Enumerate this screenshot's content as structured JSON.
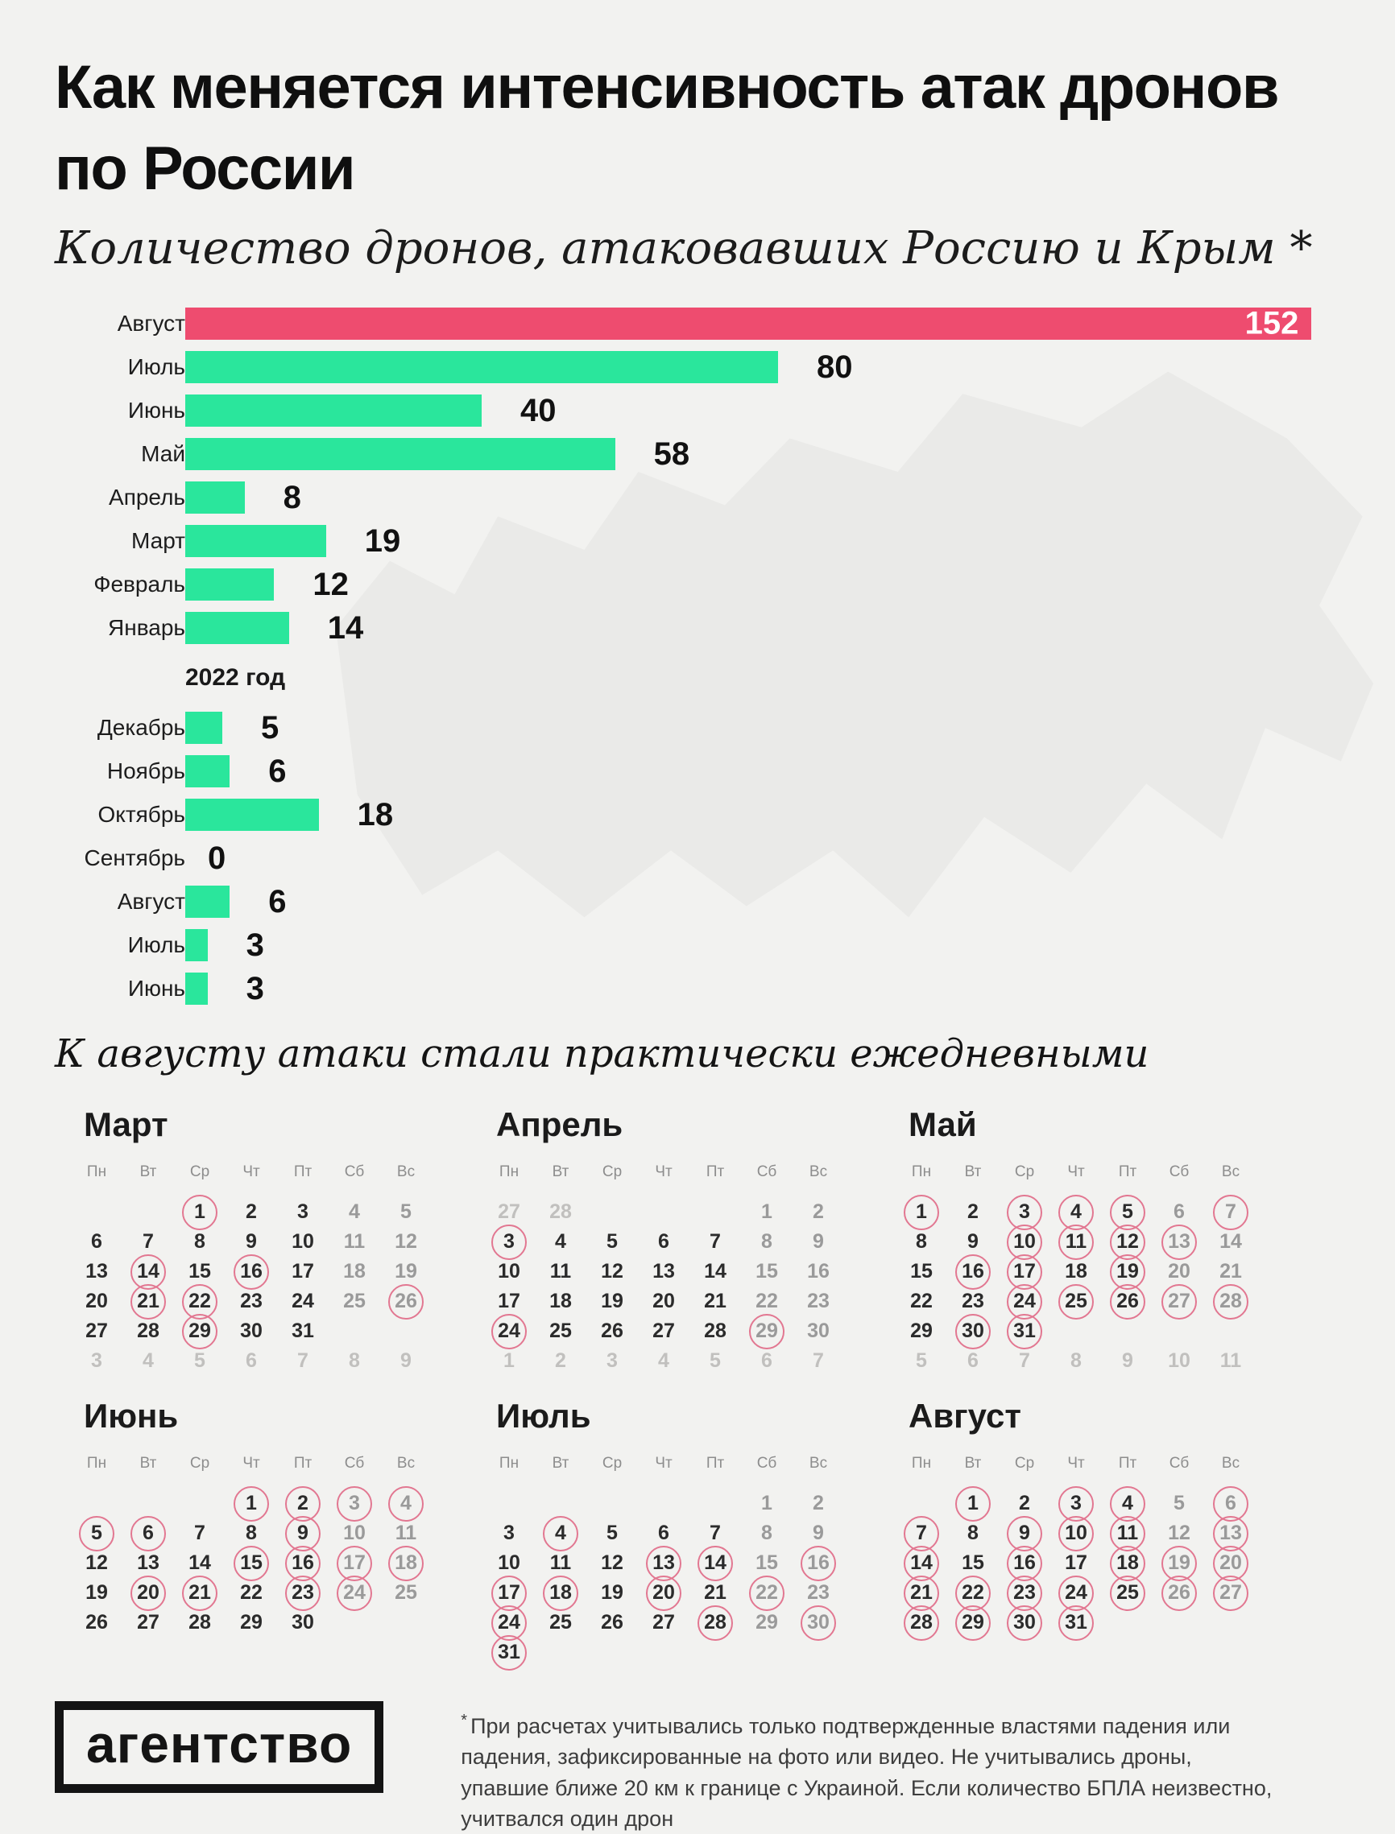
{
  "header": {
    "title_line1": "Как меняется интенсивность атак дронов",
    "title_line2": "по России",
    "subtitle": "Количество дронов, атаковавших Россию и Крым *"
  },
  "chart_data": {
    "type": "bar",
    "orientation": "horizontal",
    "title": "Количество дронов, атаковавших Россию и Крым",
    "categories": [
      "Август",
      "Июль",
      "Июнь",
      "Май",
      "Апрель",
      "Март",
      "Февраль",
      "Январь",
      "Декабрь",
      "Ноябрь",
      "Октябрь",
      "Сентябрь",
      "Август",
      "Июль",
      "Июнь"
    ],
    "values": [
      152,
      80,
      40,
      58,
      8,
      19,
      12,
      14,
      5,
      6,
      18,
      0,
      6,
      3,
      3
    ],
    "xlim": [
      0,
      152
    ],
    "grid": false,
    "year_break": {
      "after_index": 7,
      "label": "2022 год"
    },
    "highlight": {
      "index": 0,
      "color": "#ee4c6f",
      "value_inside": true
    },
    "bar_color": "#2ae69c",
    "value_label_color": "#111111",
    "highlight_value_color": "#ffffff"
  },
  "caption": "К августу атаки стали практически ежедневными",
  "calendars": {
    "weekdays": [
      "Пн",
      "Вт",
      "Ср",
      "Чт",
      "Пт",
      "Сб",
      "Вс"
    ],
    "circle_color": "#e27791",
    "months": [
      {
        "title": "Март",
        "cells": [
          "",
          "",
          "1c",
          "2",
          "3",
          "4w",
          "5w",
          "6",
          "7",
          "8",
          "9",
          "10",
          "11w",
          "12w",
          "13",
          "14c",
          "15",
          "16c",
          "17",
          "18w",
          "19w",
          "20",
          "21c",
          "22c",
          "23",
          "24",
          "25w",
          "26wc",
          "27",
          "28",
          "29c",
          "30",
          "31",
          "",
          "",
          "3m",
          "4m",
          "5m",
          "6m",
          "7m",
          "8m",
          "9m"
        ]
      },
      {
        "title": "Апрель",
        "cells": [
          "27m",
          "28m",
          "",
          "",
          "",
          "1w",
          "2w",
          "3c",
          "4",
          "5",
          "6",
          "7",
          "8w",
          "9w",
          "10",
          "11",
          "12",
          "13",
          "14",
          "15w",
          "16w",
          "17",
          "18",
          "19",
          "20",
          "21",
          "22w",
          "23w",
          "24c",
          "25",
          "26",
          "27",
          "28",
          "29wc",
          "30w",
          "1m",
          "2m",
          "3m",
          "4m",
          "5m",
          "6m",
          "7m"
        ]
      },
      {
        "title": "Май",
        "cells": [
          "1c",
          "2",
          "3c",
          "4c",
          "5c",
          "6w",
          "7wc",
          "8",
          "9",
          "10c",
          "11c",
          "12c",
          "13wc",
          "14w",
          "15",
          "16c",
          "17c",
          "18",
          "19c",
          "20w",
          "21w",
          "22",
          "23",
          "24c",
          "25c",
          "26c",
          "27wc",
          "28wc",
          "29",
          "30c",
          "31c",
          "",
          "",
          "",
          "",
          "5m",
          "6m",
          "7m",
          "8m",
          "9m",
          "10m",
          "11m"
        ]
      },
      {
        "title": "Июнь",
        "cells": [
          "",
          "",
          "",
          "1c",
          "2c",
          "3wc",
          "4wc",
          "5c",
          "6c",
          "7",
          "8",
          "9c",
          "10w",
          "11w",
          "12",
          "13",
          "14",
          "15c",
          "16c",
          "17wc",
          "18wc",
          "19",
          "20c",
          "21c",
          "22",
          "23c",
          "24wc",
          "25w",
          "26",
          "27",
          "28",
          "29",
          "30",
          "",
          ""
        ]
      },
      {
        "title": "Июль",
        "cells": [
          "",
          "",
          "",
          "",
          "",
          "1w",
          "2w",
          "3",
          "4c",
          "5",
          "6",
          "7",
          "8w",
          "9w",
          "10",
          "11",
          "12",
          "13c",
          "14c",
          "15w",
          "16wc",
          "17c",
          "18c",
          "19",
          "20c",
          "21",
          "22wc",
          "23w",
          "24c",
          "25",
          "26",
          "27",
          "28c",
          "29w",
          "30wc",
          "31c",
          "",
          "",
          "",
          "",
          "",
          ""
        ]
      },
      {
        "title": "Август",
        "cells": [
          "",
          "1c",
          "2",
          "3c",
          "4c",
          "5w",
          "6wc",
          "7c",
          "8",
          "9c",
          "10c",
          "11c",
          "12w",
          "13wc",
          "14c",
          "15",
          "16c",
          "17",
          "18c",
          "19wc",
          "20wc",
          "21c",
          "22c",
          "23c",
          "24c",
          "25c",
          "26wc",
          "27wc",
          "28c",
          "29c",
          "30c",
          "31c",
          "",
          "",
          ""
        ]
      }
    ]
  },
  "footer": {
    "logo": "агентство",
    "note_mark": "*",
    "note": "При расчетах учитывались только подтвержденные властями падения или падения, зафиксированные на фото или видео. Не учитывались дроны, упавшие ближе 20 км к границе с Украиной. Если количество БПЛА неизвестно, учитвался один дрон"
  }
}
